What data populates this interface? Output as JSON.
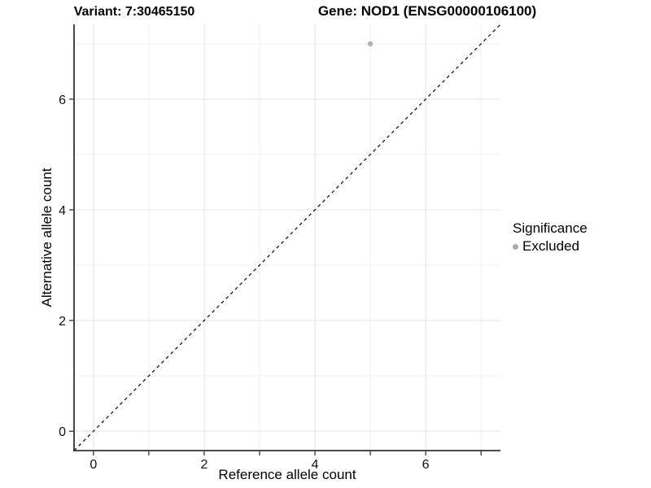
{
  "chart_data": {
    "type": "scatter",
    "title_left": "Variant: 7:30465150",
    "title_right": "Gene: NOD1 (ENSG00000106100)",
    "xlabel": "Reference allele count",
    "ylabel": "Alternative allele count",
    "xlim": [
      -0.35,
      7.35
    ],
    "ylim": [
      -0.35,
      7.35
    ],
    "x_major_ticks": [
      0,
      2,
      4,
      6
    ],
    "x_minor_gridlines": [
      1,
      3,
      5,
      7
    ],
    "x_tick_marks": [
      0,
      1,
      2,
      3,
      4,
      5,
      6,
      7
    ],
    "y_major_ticks": [
      0,
      2,
      4,
      6
    ],
    "y_minor_gridlines": [
      1,
      3,
      5,
      7
    ],
    "y_tick_marks": [
      0,
      2,
      4,
      6
    ],
    "grid": true,
    "reference_line": {
      "type": "identity-y-equals-x",
      "style": "dashed",
      "color": "#000000"
    },
    "series": [
      {
        "name": "Excluded",
        "color": "#b3b3b3",
        "marker": "circle",
        "points": [
          {
            "x": 5,
            "y": 7
          }
        ]
      }
    ],
    "legend": {
      "title": "Significance",
      "position": "right",
      "items": [
        {
          "label": "Excluded",
          "color": "#ababab",
          "marker": "circle"
        }
      ]
    },
    "colors": {
      "background": "#ffffff",
      "axis_line": "#333333",
      "tick_mark": "#333333",
      "grid_major": "#e4e4e4",
      "grid_minor": "#f0f0f0",
      "tick_label": "#111111",
      "point": "#b3b3b3"
    }
  }
}
